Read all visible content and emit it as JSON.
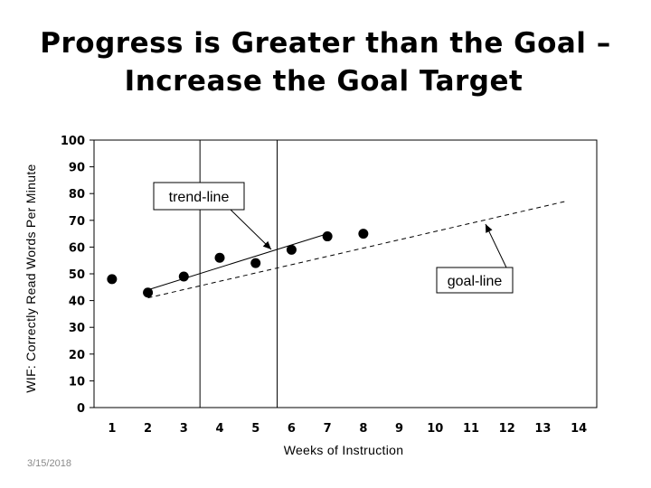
{
  "slide": {
    "title_line1": "Progress is Greater than the Goal –",
    "title_line2": "Increase the Goal Target",
    "date": "3/15/2018"
  },
  "chart_data": {
    "type": "scatter",
    "title": "",
    "xlabel": "Weeks of Instruction",
    "ylabel": "WIF: Correctly Read Words Per Minute",
    "xlim": [
      0.5,
      14.5
    ],
    "ylim": [
      0,
      100
    ],
    "x_ticks": [
      1,
      2,
      3,
      4,
      5,
      6,
      7,
      8,
      9,
      10,
      11,
      12,
      13,
      14
    ],
    "y_ticks": [
      0,
      10,
      20,
      30,
      40,
      50,
      60,
      70,
      80,
      90,
      100
    ],
    "series": [
      {
        "x": [
          1,
          2,
          3,
          4,
          5,
          6,
          7,
          8
        ],
        "y": [
          48,
          43,
          49,
          56,
          54,
          59,
          64,
          65
        ],
        "marker": "circle",
        "color": "#000000"
      }
    ],
    "trend_line": {
      "x": [
        2,
        7
      ],
      "y": [
        44,
        65
      ],
      "style": "solid",
      "label": "trend-line"
    },
    "goal_line": {
      "x": [
        2,
        13.6
      ],
      "y": [
        41,
        77
      ],
      "style": "dashed",
      "label": "goal-line"
    },
    "vertical_markers": [
      {
        "x": 3.45,
        "style": "solid"
      },
      {
        "x": 5.6,
        "style": "solid"
      }
    ],
    "grid": false
  }
}
